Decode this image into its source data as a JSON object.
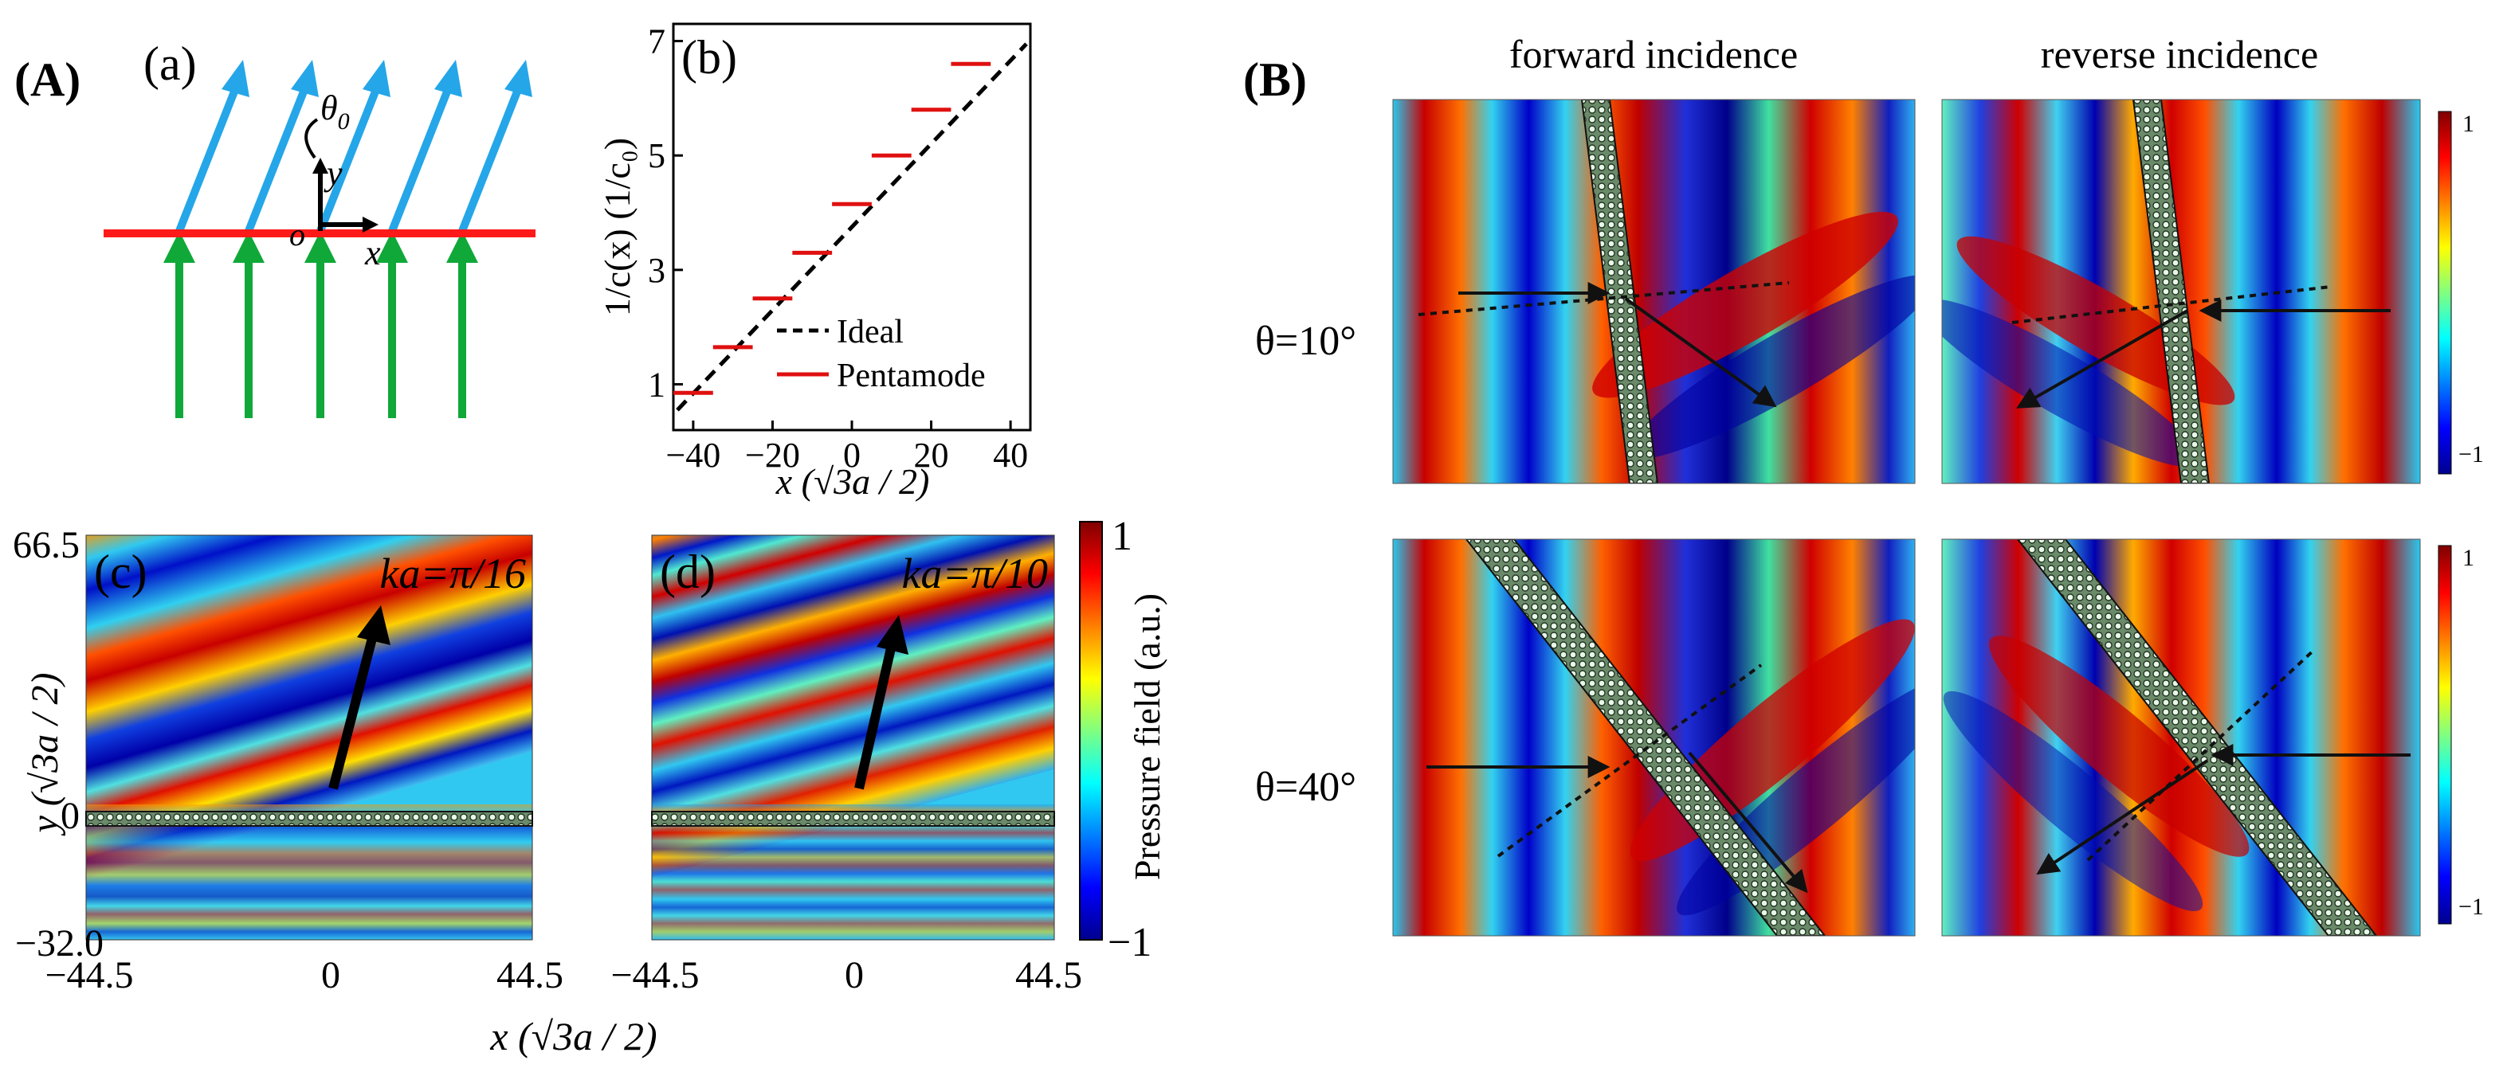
{
  "panel_A": {
    "label": "(A)",
    "a": {
      "label": "(a)",
      "theta_label": "θ",
      "theta_sub": "0",
      "origin_label": "o",
      "x_axis_label": "x",
      "y_axis_label": "y",
      "colors": {
        "boundary": "#ff1a1a",
        "incident": "#10a838",
        "transmitted": "#25a6e8"
      }
    },
    "b": {
      "label": "(b)",
      "ylabel": "1/c(x)  (1/c₀)",
      "xlabel": "x (√3a / 2)",
      "legend_ideal": "Ideal",
      "legend_pentamode": "Pentamode",
      "xticks": [
        "−40",
        "−20",
        "0",
        "20",
        "40"
      ],
      "yticks": [
        "1",
        "3",
        "5",
        "7"
      ],
      "chart_data": {
        "type": "line",
        "title": "",
        "xlabel": "x (√3a/2)",
        "ylabel": "1/c(x) (1/c0)",
        "xlim": [
          -45,
          45
        ],
        "ylim": [
          0.2,
          7.3
        ],
        "series": [
          {
            "name": "Ideal",
            "style": "dashed",
            "color": "#000000",
            "x": [
              -44,
              44
            ],
            "y": [
              0.55,
              6.95
            ]
          },
          {
            "name": "Pentamode",
            "style": "steps",
            "color": "#e01010",
            "segments": [
              {
                "x": [
                  -45,
                  -35
                ],
                "y": 0.85
              },
              {
                "x": [
                  -35,
                  -25
                ],
                "y": 1.65
              },
              {
                "x": [
                  -25,
                  -15
                ],
                "y": 2.5
              },
              {
                "x": [
                  -15,
                  -5
                ],
                "y": 3.3
              },
              {
                "x": [
                  -5,
                  5
                ],
                "y": 4.15
              },
              {
                "x": [
                  5,
                  15
                ],
                "y": 5.0
              },
              {
                "x": [
                  15,
                  25
                ],
                "y": 5.8
              },
              {
                "x": [
                  25,
                  35
                ],
                "y": 6.6
              }
            ]
          }
        ]
      }
    },
    "c": {
      "label": "(c)",
      "ka": "ka=π/16"
    },
    "d": {
      "label": "(d)",
      "ka": "ka=π/10"
    },
    "field_axes": {
      "y_top": "66.5",
      "y_zero": "0",
      "y_bottom": "−32.0",
      "ylabel": "y (√3a / 2)",
      "x_left": "−44.5",
      "x_zero": "0",
      "x_right": "44.5",
      "xlabel": "x (√3a / 2)"
    },
    "colorbar": {
      "max": "1",
      "min": "−1",
      "label": "Pressure field (a.u.)"
    }
  },
  "panel_B": {
    "label": "(B)",
    "col_forward": "forward incidence",
    "col_reverse": "reverse incidence",
    "row1": "θ=10°",
    "row2": "θ=40°",
    "colorbar_max": "1",
    "colorbar_min": "−1"
  }
}
